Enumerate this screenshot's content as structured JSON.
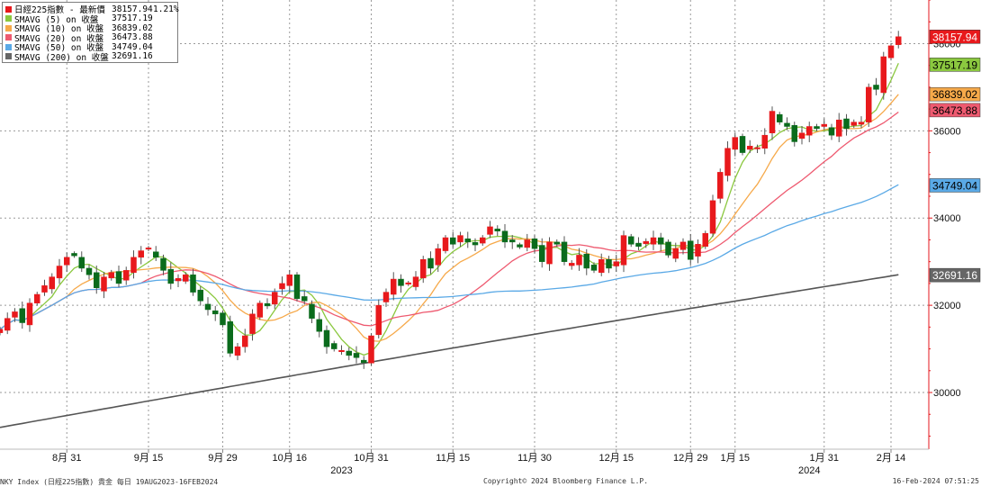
{
  "legend": {
    "items": [
      {
        "label": "日經225指數 - 最新價",
        "value": "38157.94",
        "change": "1.21%",
        "color": "#e8191c"
      },
      {
        "label": "SMAVG (5)  on 收盤",
        "value": "37517.19",
        "change": "",
        "color": "#8bc83f"
      },
      {
        "label": "SMAVG (10)  on 收盤",
        "value": "36839.02",
        "change": "",
        "color": "#f6a94a"
      },
      {
        "label": "SMAVG (20)  on 收盤",
        "value": "36473.88",
        "change": "",
        "color": "#ee5a70"
      },
      {
        "label": "SMAVG (50)  on 收盤",
        "value": "34749.04",
        "change": "",
        "color": "#5aa9e6"
      },
      {
        "label": "SMAVG (200)  on 收盤",
        "value": "32691.16",
        "change": "",
        "color": "#666666"
      }
    ]
  },
  "footer": {
    "left": "NKY Index (日經225指數) 貴金  每日 19AUG2023-16FEB2024",
    "center": "Copyright© 2024 Bloomberg Finance L.P.",
    "right": "16-Feb-2024 07:51:25"
  },
  "chart_data": {
    "type": "candlestick",
    "y_ticks": [
      30000,
      32000,
      34000,
      36000,
      38000
    ],
    "ylim": [
      28700,
      39000
    ],
    "x_ticks": [
      {
        "label": "8月 31",
        "idx": 9
      },
      {
        "label": "9月 15",
        "idx": 20
      },
      {
        "label": "9月 29",
        "idx": 30
      },
      {
        "label": "10月 16",
        "idx": 39
      },
      {
        "label": "10月 31",
        "idx": 50
      },
      {
        "label": "11月 15",
        "idx": 61
      },
      {
        "label": "11月 30",
        "idx": 72
      },
      {
        "label": "12月 15",
        "idx": 83
      },
      {
        "label": "12月 29",
        "idx": 93
      },
      {
        "label": "1月 15",
        "idx": 99
      },
      {
        "label": "1月 31",
        "idx": 111
      },
      {
        "label": "2月 14",
        "idx": 120
      }
    ],
    "year_labels": [
      {
        "label": "2023",
        "idx": 46
      },
      {
        "label": "2024",
        "idx": 109
      }
    ],
    "price_labels": [
      {
        "text": "38157.94",
        "value": 38157.94,
        "bg": "#e8191c",
        "fg": "#ffffff"
      },
      {
        "text": "37517.19",
        "value": 37517.19,
        "bg": "#8bc83f",
        "fg": "#000000"
      },
      {
        "text": "36839.02",
        "value": 36839.02,
        "bg": "#f6a94a",
        "fg": "#000000"
      },
      {
        "text": "36473.88",
        "value": 36473.88,
        "bg": "#ee5a70",
        "fg": "#000000"
      },
      {
        "text": "34749.04",
        "value": 34749.04,
        "bg": "#5aa9e6",
        "fg": "#000000"
      },
      {
        "text": "32691.16",
        "value": 32691.16,
        "bg": "#666666",
        "fg": "#ffffff"
      }
    ],
    "closes": [
      31450,
      31700,
      31850,
      31600,
      32050,
      32250,
      32450,
      32650,
      32900,
      33100,
      33150,
      32850,
      32700,
      32400,
      32650,
      32750,
      32500,
      32800,
      33100,
      33250,
      33300,
      33100,
      32800,
      32500,
      32600,
      32700,
      32300,
      32100,
      31900,
      31800,
      31550,
      30900,
      31050,
      31300,
      31800,
      32050,
      32000,
      32300,
      32500,
      32700,
      32150,
      32100,
      31700,
      31400,
      31050,
      31000,
      30950,
      30850,
      30800,
      30700,
      31300,
      32000,
      32300,
      32600,
      32450,
      32500,
      32650,
      33050,
      32850,
      33300,
      33550,
      33400,
      33600,
      33450,
      33400,
      33550,
      33800,
      33700,
      33450,
      33450,
      33350,
      33500,
      33300,
      33000,
      33450,
      33400,
      33000,
      32950,
      33150,
      32850,
      32800,
      33050,
      32850,
      33000,
      33600,
      33400,
      33350,
      33450,
      33550,
      33400,
      33150,
      33300,
      33450,
      33050,
      33400,
      33650,
      34400,
      35050,
      35600,
      35850,
      35500,
      35650,
      35600,
      35900,
      36450,
      36200,
      36100,
      35750,
      35950,
      36100,
      36050,
      36150,
      35900,
      36250,
      36050,
      36200,
      36200,
      37000,
      36950,
      37700,
      37950,
      38157.94
    ],
    "series": [
      {
        "name": "SMAVG (5)",
        "period": 5,
        "color": "#8bc83f"
      },
      {
        "name": "SMAVG (10)",
        "period": 10,
        "color": "#f6a94a"
      },
      {
        "name": "SMAVG (20)",
        "period": 20,
        "color": "#ee5a70"
      },
      {
        "name": "SMAVG (50)",
        "period": 50,
        "color": "#5aa9e6"
      },
      {
        "name": "SMAVG (200)",
        "color": "#555555",
        "start": 29200,
        "end": 32691.16
      }
    ],
    "up_color": "#e8191c",
    "down_color": "#0a6b1c"
  }
}
